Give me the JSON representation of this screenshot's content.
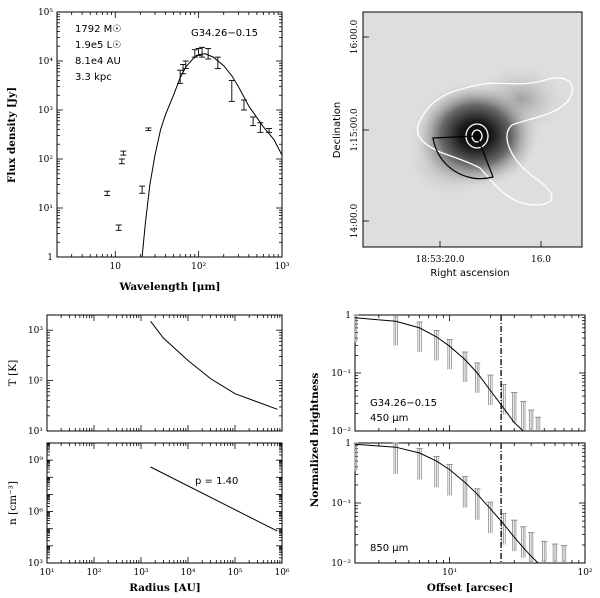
{
  "chart_data": [
    {
      "id": "sed",
      "type": "line",
      "xlabel": "Wavelength [μm]",
      "ylabel": "Flux density [Jy]",
      "x_scale": "log",
      "y_scale": "log",
      "xlim": [
        2,
        1000
      ],
      "ylim": [
        1,
        100000
      ],
      "x_ticks": [
        {
          "v": 10,
          "t": "10"
        },
        {
          "v": 100,
          "t": "10²"
        },
        {
          "v": 1000,
          "t": "10³"
        }
      ],
      "y_ticks": [
        {
          "v": 1,
          "t": "1"
        },
        {
          "v": 10,
          "t": "10¹"
        },
        {
          "v": 100,
          "t": "10²"
        },
        {
          "v": 1000,
          "t": "10³"
        },
        {
          "v": 10000,
          "t": "10⁴"
        },
        {
          "v": 100000,
          "t": "10⁵"
        }
      ],
      "annotations": [
        "1792 M☉",
        "1.9e5 L☉",
        "8.1e4 AU",
        "3.3 kpc"
      ],
      "source_name": "G34.26−0.15",
      "model_curve": [
        [
          21,
          1
        ],
        [
          23,
          5
        ],
        [
          26,
          30
        ],
        [
          30,
          120
        ],
        [
          35,
          400
        ],
        [
          40,
          800
        ],
        [
          50,
          2000
        ],
        [
          60,
          4500
        ],
        [
          70,
          7500
        ],
        [
          85,
          11000
        ],
        [
          100,
          13500
        ],
        [
          120,
          14000
        ],
        [
          150,
          12000
        ],
        [
          200,
          8000
        ],
        [
          250,
          5000
        ],
        [
          300,
          3000
        ],
        [
          400,
          1200
        ],
        [
          500,
          700
        ],
        [
          600,
          450
        ],
        [
          800,
          250
        ],
        [
          1000,
          120
        ]
      ],
      "errorbars": [
        {
          "x": 8,
          "lo": 18,
          "hi": 22
        },
        {
          "x": 11,
          "lo": 3.5,
          "hi": 4.5
        },
        {
          "x": 12,
          "lo": 80,
          "hi": 100
        },
        {
          "x": 12.5,
          "lo": 120,
          "hi": 145
        },
        {
          "x": 21,
          "lo": 20,
          "hi": 28
        },
        {
          "x": 25,
          "lo": 380,
          "hi": 430
        },
        {
          "x": 60,
          "lo": 3500,
          "hi": 6500
        },
        {
          "x": 65,
          "lo": 5500,
          "hi": 8500
        },
        {
          "x": 70,
          "lo": 7000,
          "hi": 10000
        },
        {
          "x": 90,
          "lo": 12000,
          "hi": 17000
        },
        {
          "x": 100,
          "lo": 13000,
          "hi": 18000
        },
        {
          "x": 110,
          "lo": 12000,
          "hi": 19000
        },
        {
          "x": 130,
          "lo": 11000,
          "hi": 18000
        },
        {
          "x": 170,
          "lo": 7000,
          "hi": 12000
        },
        {
          "x": 250,
          "lo": 1500,
          "hi": 4000
        },
        {
          "x": 350,
          "lo": 1000,
          "hi": 1600
        },
        {
          "x": 450,
          "lo": 480,
          "hi": 720
        },
        {
          "x": 550,
          "lo": 350,
          "hi": 550
        },
        {
          "x": 700,
          "lo": 350,
          "hi": 420
        }
      ]
    },
    {
      "id": "image",
      "type": "heatmap",
      "xlabel": "Right ascension",
      "ylabel": "Declination",
      "x_ticks": [
        "18:53:20.0",
        "16.0"
      ],
      "y_ticks": [
        "16:00.0",
        "1:15:00.0",
        "14:00.0"
      ]
    },
    {
      "id": "temperature",
      "type": "line",
      "ylabel": "T [K]",
      "x_scale": "log",
      "y_scale": "log",
      "xlim": [
        10,
        1000000
      ],
      "ylim": [
        10,
        2000
      ],
      "y_ticks": [
        {
          "v": 10,
          "t": "10¹"
        },
        {
          "v": 100,
          "t": "10²"
        },
        {
          "v": 1000,
          "t": "10³"
        }
      ],
      "x": [
        1600,
        3000,
        10000,
        30000,
        100000,
        800000
      ],
      "y": [
        1500,
        700,
        250,
        110,
        55,
        27
      ]
    },
    {
      "id": "density",
      "type": "line",
      "xlabel": "Radius [AU]",
      "ylabel": "n [cm⁻³]",
      "x_scale": "log",
      "y_scale": "log",
      "xlim": [
        10,
        1000000
      ],
      "ylim": [
        1000,
        10000000000
      ],
      "x_ticks": [
        {
          "v": 10,
          "t": "10¹"
        },
        {
          "v": 100,
          "t": "10²"
        },
        {
          "v": 1000,
          "t": "10³"
        },
        {
          "v": 10000,
          "t": "10⁴"
        },
        {
          "v": 100000,
          "t": "10⁵"
        },
        {
          "v": 1000000,
          "t": "10⁶"
        }
      ],
      "y_ticks": [
        {
          "v": 1000,
          "t": "10³"
        },
        {
          "v": 1000000,
          "t": "10⁶"
        },
        {
          "v": 1000000000,
          "t": "10⁹"
        }
      ],
      "x": [
        1600,
        800000
      ],
      "y": [
        400000000,
        73000
      ],
      "annotation": "p = 1.40"
    },
    {
      "id": "profile450",
      "type": "line",
      "ylabel": "Normalized brightness",
      "x_scale": "log",
      "y_scale": "log",
      "xlim": [
        2,
        100
      ],
      "ylim": [
        0.01,
        1
      ],
      "y_ticks": [
        {
          "v": 0.01,
          "t": "10⁻²"
        },
        {
          "v": 0.1,
          "t": "10⁻¹"
        },
        {
          "v": 1,
          "t": "1"
        }
      ],
      "source_name": "G34.26−0.15",
      "band": "450 μm",
      "vline_x": 24,
      "model": [
        [
          2,
          0.9
        ],
        [
          4,
          0.78
        ],
        [
          6,
          0.6
        ],
        [
          8,
          0.42
        ],
        [
          10,
          0.29
        ],
        [
          13,
          0.17
        ],
        [
          16,
          0.1
        ],
        [
          20,
          0.05
        ],
        [
          25,
          0.025
        ],
        [
          30,
          0.014
        ],
        [
          35,
          0.01
        ]
      ],
      "obs": [
        [
          2,
          0.98
        ],
        [
          4,
          0.85
        ],
        [
          6,
          0.66
        ],
        [
          8,
          0.47
        ],
        [
          10,
          0.33
        ],
        [
          13,
          0.2
        ],
        [
          16,
          0.13
        ],
        [
          20,
          0.08
        ],
        [
          25,
          0.055
        ],
        [
          30,
          0.04
        ],
        [
          35,
          0.028
        ],
        [
          40,
          0.02
        ],
        [
          45,
          0.015
        ]
      ]
    },
    {
      "id": "profile850",
      "type": "line",
      "xlabel": "Offset [arcsec]",
      "ylabel": "Normalized brightness",
      "x_scale": "log",
      "y_scale": "log",
      "xlim": [
        2,
        100
      ],
      "ylim": [
        0.01,
        1
      ],
      "x_ticks": [
        {
          "v": 10,
          "t": "10¹"
        },
        {
          "v": 100,
          "t": "10²"
        }
      ],
      "y_ticks": [
        {
          "v": 0.01,
          "t": "10⁻²"
        },
        {
          "v": 0.1,
          "t": "10⁻¹"
        },
        {
          "v": 1,
          "t": "1"
        }
      ],
      "band": "850 μm",
      "vline_x": 24,
      "model": [
        [
          2,
          0.95
        ],
        [
          4,
          0.85
        ],
        [
          6,
          0.68
        ],
        [
          8,
          0.5
        ],
        [
          10,
          0.36
        ],
        [
          13,
          0.22
        ],
        [
          16,
          0.14
        ],
        [
          20,
          0.08
        ],
        [
          25,
          0.045
        ],
        [
          30,
          0.027
        ],
        [
          35,
          0.018
        ],
        [
          40,
          0.013
        ],
        [
          45,
          0.01
        ]
      ],
      "obs": [
        [
          2,
          0.98
        ],
        [
          4,
          0.87
        ],
        [
          6,
          0.7
        ],
        [
          8,
          0.52
        ],
        [
          10,
          0.38
        ],
        [
          13,
          0.24
        ],
        [
          16,
          0.15
        ],
        [
          20,
          0.09
        ],
        [
          25,
          0.058
        ],
        [
          30,
          0.045
        ],
        [
          35,
          0.035
        ],
        [
          40,
          0.028
        ],
        [
          50,
          0.02
        ],
        [
          60,
          0.018
        ],
        [
          70,
          0.017
        ]
      ]
    }
  ]
}
